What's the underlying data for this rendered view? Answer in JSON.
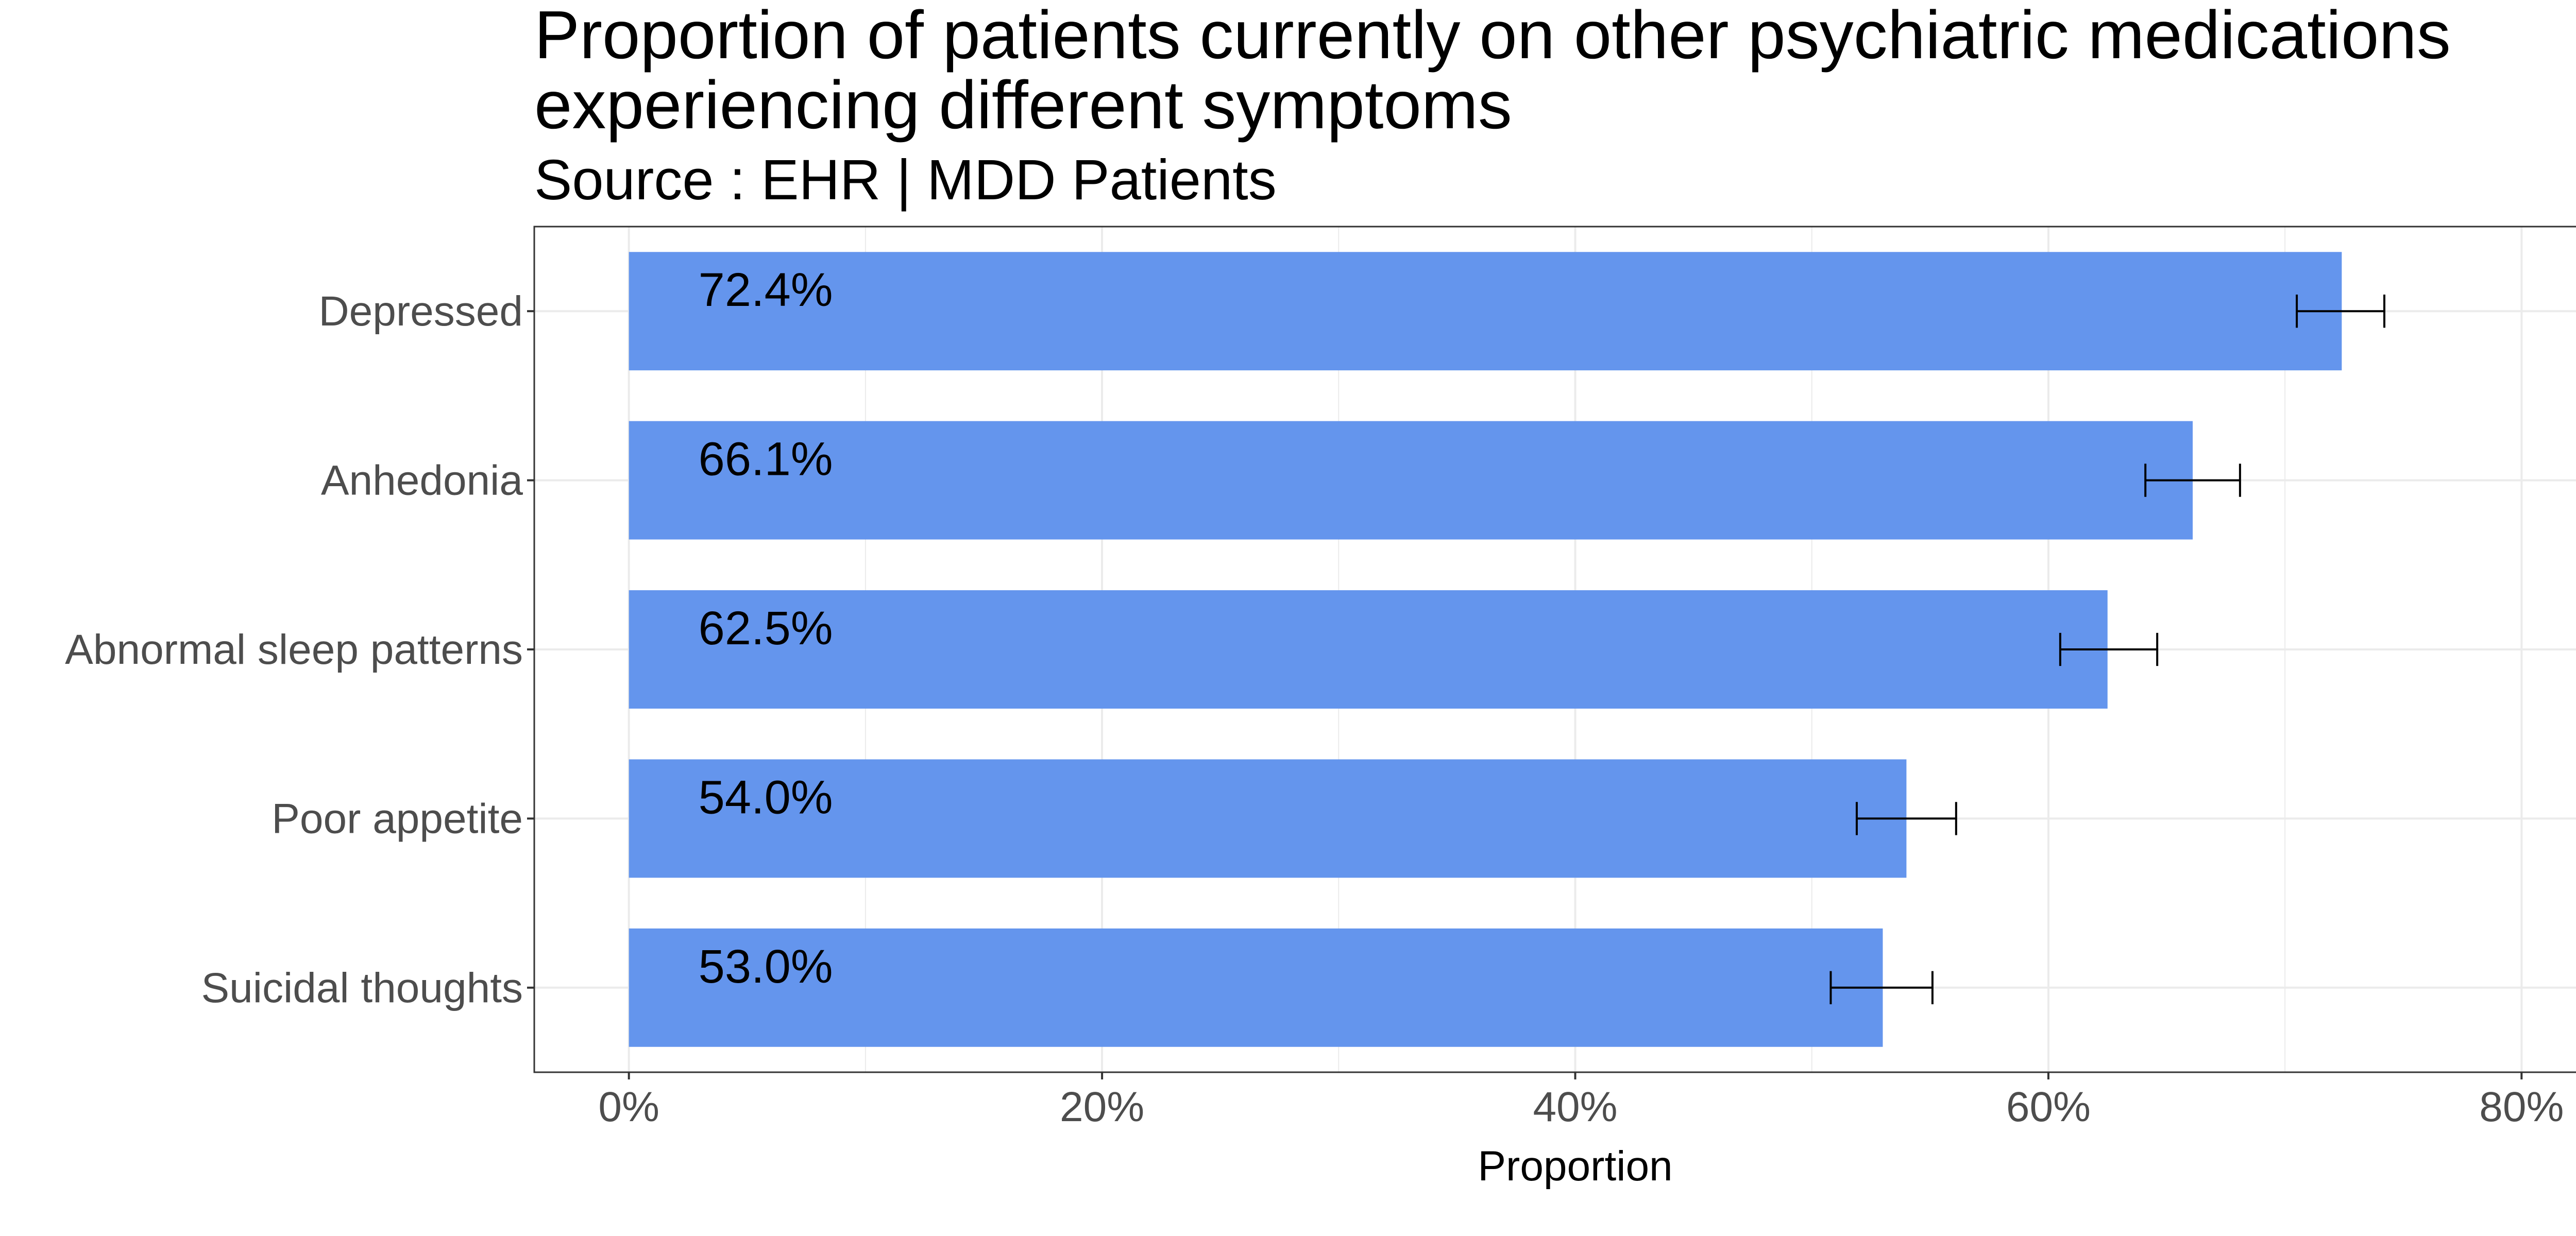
{
  "chart_data": {
    "type": "bar",
    "orientation": "horizontal",
    "title_lines": [
      "Proportion of patients currently on other psychiatric medications",
      "experiencing different symptoms"
    ],
    "subtitle": "Source : EHR | MDD Patients",
    "xlabel": "Proportion",
    "ylabel": "",
    "categories": [
      "Depressed",
      "Anhedonia",
      "Abnormal sleep patterns",
      "Poor appetite",
      "Suicidal thoughts"
    ],
    "values": [
      72.4,
      66.1,
      62.5,
      54.0,
      53.0
    ],
    "value_labels": [
      "72.4%",
      "66.1%",
      "62.5%",
      "54.0%",
      "53.0%"
    ],
    "error_low": [
      70.5,
      64.1,
      60.5,
      51.9,
      50.8
    ],
    "error_high": [
      74.2,
      68.1,
      64.6,
      56.1,
      55.1
    ],
    "xlim": [
      -4,
      84
    ],
    "x_ticks": [
      0,
      20,
      40,
      60,
      80
    ],
    "x_tick_labels": [
      "0%",
      "20%",
      "40%",
      "60%",
      "80%"
    ],
    "grid": true,
    "bar_color": "#6495ED",
    "error_bar_color": "#000000",
    "panel_border_color": "#333333",
    "grid_color": "#ebebeb"
  }
}
